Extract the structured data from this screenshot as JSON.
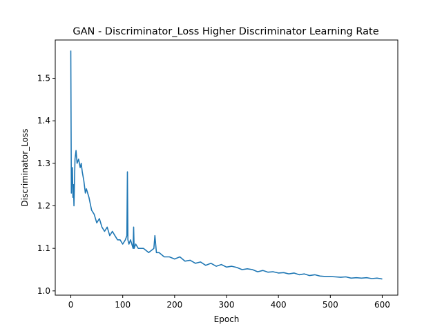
{
  "chart_data": {
    "type": "line",
    "title": "GAN - Discriminator_Loss Higher Discriminator Learning Rate",
    "xlabel": "Epoch",
    "ylabel": "Discriminator_Loss",
    "xlim": [
      -30,
      630
    ],
    "ylim": [
      0.99,
      1.59
    ],
    "xticks": [
      0,
      100,
      200,
      300,
      400,
      500,
      600
    ],
    "yticks": [
      1.0,
      1.1,
      1.2,
      1.3,
      1.4,
      1.5
    ],
    "grid": false,
    "legend": "none",
    "series": [
      {
        "color": "#1f77b4",
        "x": [
          0,
          1,
          2,
          3,
          4,
          5,
          6,
          8,
          10,
          12,
          15,
          18,
          20,
          22,
          25,
          28,
          30,
          35,
          40,
          45,
          50,
          55,
          60,
          65,
          70,
          75,
          80,
          85,
          90,
          95,
          100,
          105,
          108,
          109,
          110,
          112,
          115,
          120,
          121,
          122,
          125,
          130,
          140,
          150,
          160,
          162,
          165,
          170,
          180,
          190,
          200,
          210,
          220,
          230,
          240,
          250,
          260,
          270,
          280,
          290,
          300,
          310,
          320,
          330,
          340,
          350,
          360,
          370,
          380,
          390,
          400,
          410,
          420,
          430,
          440,
          450,
          460,
          470,
          480,
          490,
          500,
          510,
          520,
          530,
          540,
          550,
          560,
          570,
          580,
          590,
          600
        ],
        "y": [
          1.565,
          1.23,
          1.28,
          1.29,
          1.22,
          1.25,
          1.2,
          1.31,
          1.33,
          1.3,
          1.31,
          1.29,
          1.3,
          1.28,
          1.26,
          1.23,
          1.24,
          1.22,
          1.19,
          1.18,
          1.16,
          1.17,
          1.15,
          1.14,
          1.15,
          1.13,
          1.14,
          1.13,
          1.12,
          1.12,
          1.11,
          1.12,
          1.13,
          1.28,
          1.12,
          1.11,
          1.12,
          1.1,
          1.15,
          1.1,
          1.11,
          1.1,
          1.1,
          1.09,
          1.1,
          1.13,
          1.09,
          1.09,
          1.08,
          1.08,
          1.075,
          1.08,
          1.07,
          1.072,
          1.065,
          1.068,
          1.06,
          1.065,
          1.058,
          1.062,
          1.056,
          1.058,
          1.055,
          1.05,
          1.052,
          1.05,
          1.045,
          1.048,
          1.044,
          1.045,
          1.042,
          1.043,
          1.04,
          1.042,
          1.038,
          1.04,
          1.036,
          1.038,
          1.035,
          1.034,
          1.034,
          1.033,
          1.032,
          1.033,
          1.03,
          1.031,
          1.03,
          1.031,
          1.029,
          1.03,
          1.028
        ]
      }
    ]
  }
}
